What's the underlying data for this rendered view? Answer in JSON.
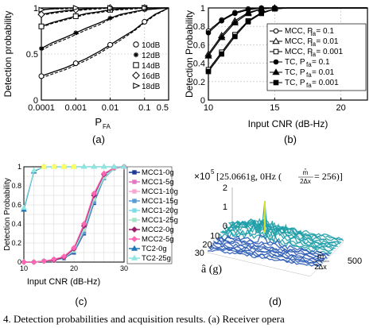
{
  "caption": "4.   Detection probabilities and acquisition results. (a) Receiver opera",
  "chart_data": [
    {
      "type": "line",
      "panel_label": "(a)",
      "xlabel_main": "P",
      "xlabel_sub": "FA",
      "ylabel": "Detection probability",
      "xscale": "log",
      "x_ticks": [
        "0.0001",
        "0.001",
        "0.01",
        "0.1",
        "0.5"
      ],
      "y_ticks": [
        "0",
        "0.5",
        "1"
      ],
      "xlim": [
        0.0001,
        0.5
      ],
      "ylim": [
        0,
        1
      ],
      "grid": true,
      "legend_position": "bottom-right",
      "x": [
        0.0001,
        0.0002,
        0.0005,
        0.001,
        0.002,
        0.005,
        0.01,
        0.02,
        0.05,
        0.1,
        0.2,
        0.5
      ],
      "series": [
        {
          "name": "10dB",
          "marker": "circle",
          "solid": [
            0.26,
            0.3,
            0.35,
            0.4,
            0.45,
            0.53,
            0.6,
            0.67,
            0.76,
            0.85,
            0.93,
            1.0
          ],
          "dashed": [
            0.24,
            0.28,
            0.33,
            0.38,
            0.43,
            0.51,
            0.58,
            0.65,
            0.75,
            0.84,
            0.92,
            1.0
          ]
        },
        {
          "name": "12dB",
          "marker": "star",
          "solid": [
            0.56,
            0.62,
            0.68,
            0.73,
            0.78,
            0.84,
            0.89,
            0.93,
            0.96,
            0.98,
            0.99,
            1.0
          ],
          "dashed": [
            0.54,
            0.6,
            0.66,
            0.71,
            0.76,
            0.82,
            0.88,
            0.92,
            0.95,
            0.98,
            0.99,
            1.0
          ]
        },
        {
          "name": "14dB",
          "marker": "square",
          "solid": [
            0.8,
            0.84,
            0.88,
            0.91,
            0.94,
            0.96,
            0.98,
            0.99,
            1.0,
            1.0,
            1.0,
            1.0
          ],
          "dashed": [
            0.79,
            0.83,
            0.87,
            0.9,
            0.93,
            0.95,
            0.97,
            0.98,
            0.99,
            1.0,
            1.0,
            1.0
          ]
        },
        {
          "name": "16dB",
          "marker": "diamond",
          "solid": [
            0.93,
            0.95,
            0.97,
            0.98,
            0.99,
            1.0,
            1.0,
            1.0,
            1.0,
            1.0,
            1.0,
            1.0
          ],
          "dashed": [
            0.92,
            0.94,
            0.96,
            0.97,
            0.98,
            0.99,
            1.0,
            1.0,
            1.0,
            1.0,
            1.0,
            1.0
          ]
        },
        {
          "name": "18dB",
          "marker": "triangle-right",
          "solid": [
            0.98,
            0.99,
            1.0,
            1.0,
            1.0,
            1.0,
            1.0,
            1.0,
            1.0,
            1.0,
            1.0,
            1.0
          ],
          "dashed": [
            0.98,
            0.99,
            0.99,
            1.0,
            1.0,
            1.0,
            1.0,
            1.0,
            1.0,
            1.0,
            1.0,
            1.0
          ]
        }
      ]
    },
    {
      "type": "line",
      "panel_label": "(b)",
      "xlabel": "Input CNR (dB-Hz)",
      "ylabel": "Detection Probability",
      "x_ticks": [
        "10",
        "15",
        "20"
      ],
      "y_ticks": [
        "0",
        "0.2",
        "0.4",
        "0.6",
        "0.8",
        "1"
      ],
      "xlim": [
        10,
        22
      ],
      "ylim": [
        0,
        1
      ],
      "grid": true,
      "legend_position": "right",
      "x": [
        10,
        11,
        12,
        13,
        14,
        15,
        16,
        17,
        18,
        19,
        20,
        21,
        22
      ],
      "series": [
        {
          "name": "MCC, P",
          "name_sub": "fa",
          "name_tail": " = 0.1",
          "marker": "circle-open",
          "values": [
            0.75,
            0.87,
            0.95,
            0.99,
            1.0,
            1.0,
            1.0,
            1.0,
            1.0,
            1.0,
            1.0,
            1.0,
            1.0
          ]
        },
        {
          "name": "MCC, P",
          "name_sub": "fa",
          "name_tail": " = 0.01",
          "marker": "triangle-open",
          "values": [
            0.5,
            0.7,
            0.86,
            0.95,
            0.99,
            1.0,
            1.0,
            1.0,
            1.0,
            1.0,
            1.0,
            1.0,
            1.0
          ]
        },
        {
          "name": "MCC, P",
          "name_sub": "fa",
          "name_tail": " = 0.001",
          "marker": "square-open",
          "values": [
            0.33,
            0.52,
            0.71,
            0.86,
            0.95,
            0.99,
            1.0,
            1.0,
            1.0,
            1.0,
            1.0,
            1.0,
            1.0
          ]
        },
        {
          "name": "TC, P",
          "name_sub": "fa",
          "name_tail": " = 0.1",
          "marker": "circle-filled",
          "values": [
            0.73,
            0.86,
            0.94,
            0.98,
            1.0,
            1.0,
            1.0,
            1.0,
            1.0,
            1.0,
            1.0,
            1.0,
            1.0
          ]
        },
        {
          "name": "TC, P",
          "name_sub": "fa",
          "name_tail": " = 0.01",
          "marker": "triangle-filled",
          "values": [
            0.48,
            0.68,
            0.84,
            0.94,
            0.99,
            1.0,
            1.0,
            1.0,
            1.0,
            1.0,
            1.0,
            1.0,
            1.0
          ]
        },
        {
          "name": "TC, P",
          "name_sub": "fa",
          "name_tail": " = 0.001",
          "marker": "square-filled",
          "values": [
            0.31,
            0.5,
            0.69,
            0.85,
            0.94,
            0.99,
            1.0,
            1.0,
            1.0,
            1.0,
            1.0,
            1.0,
            1.0
          ]
        }
      ]
    },
    {
      "type": "line",
      "panel_label": "(c)",
      "xlabel": "Input CNR (dB-Hz)",
      "ylabel": "Detection Probability",
      "x_ticks": [
        "10",
        "20",
        "30"
      ],
      "y_ticks": [
        "0",
        "0.2",
        "0.4",
        "0.6",
        "0.8",
        "1"
      ],
      "xlim": [
        10,
        30
      ],
      "ylim": [
        0,
        1
      ],
      "grid": true,
      "legend_position": "right",
      "x": [
        10,
        12,
        14,
        16,
        18,
        20,
        22,
        24,
        26,
        28,
        30
      ],
      "series": [
        {
          "name": "MCC1-0g",
          "color": "#1f3a93",
          "marker": "square",
          "values": [
            0.0,
            0.0,
            0.01,
            0.02,
            0.04,
            0.1,
            0.3,
            0.62,
            0.88,
            0.98,
            1.0
          ]
        },
        {
          "name": "MCC1-5g",
          "color": "#e377c2",
          "marker": "square",
          "values": [
            0.0,
            0.0,
            0.01,
            0.02,
            0.05,
            0.12,
            0.32,
            0.64,
            0.89,
            0.98,
            1.0
          ]
        },
        {
          "name": "MCC1-10g",
          "color": "#f7a8d0",
          "marker": "square",
          "values": [
            0.0,
            0.0,
            0.01,
            0.02,
            0.05,
            0.12,
            0.33,
            0.65,
            0.9,
            0.98,
            1.0
          ]
        },
        {
          "name": "MCC1-15g",
          "color": "#5b9bd5",
          "marker": "square",
          "values": [
            0.0,
            0.0,
            0.01,
            0.02,
            0.04,
            0.11,
            0.31,
            0.63,
            0.88,
            0.98,
            1.0
          ]
        },
        {
          "name": "MCC1-20g",
          "color": "#7fdbe8",
          "marker": "square",
          "values": [
            0.0,
            0.0,
            0.01,
            0.03,
            0.05,
            0.13,
            0.35,
            0.67,
            0.9,
            0.99,
            1.0
          ]
        },
        {
          "name": "MCC1-25g",
          "color": "#a6e3c8",
          "marker": "square",
          "values": [
            0.0,
            0.0,
            0.01,
            0.02,
            0.05,
            0.12,
            0.34,
            0.66,
            0.89,
            0.98,
            1.0
          ]
        },
        {
          "name": "MCC2-0g",
          "color": "#9c1f6e",
          "marker": "diamond",
          "values": [
            0.0,
            0.0,
            0.01,
            0.02,
            0.05,
            0.14,
            0.38,
            0.7,
            0.92,
            0.99,
            1.0
          ]
        },
        {
          "name": "MCC2-5g",
          "color": "#ff66b3",
          "marker": "diamond",
          "values": [
            0.0,
            0.0,
            0.01,
            0.03,
            0.06,
            0.15,
            0.4,
            0.72,
            0.93,
            0.99,
            1.0
          ]
        },
        {
          "name": "TC2-0g",
          "color": "#1f77b4",
          "marker": "triangle",
          "values": [
            0.55,
            0.95,
            1.0,
            1.0,
            1.0,
            1.0,
            1.0,
            1.0,
            1.0,
            1.0,
            1.0
          ]
        },
        {
          "name": "TC2-25g",
          "color": "#8ee6e0",
          "marker": "triangle",
          "values": [
            0.57,
            0.96,
            1.0,
            1.0,
            1.0,
            1.0,
            1.0,
            1.0,
            1.0,
            1.0,
            1.0
          ]
        }
      ],
      "upper_cluster_color": "#ffff66"
    },
    {
      "type": "surface",
      "panel_label": "(d)",
      "title_prefix": "×10",
      "title_exp": "5",
      "title_main": "[25.0661g, 0Hz (",
      "title_frac_num": "m̂",
      "title_frac_den": "2Δx",
      "title_tail": " = 256)]",
      "z_ticks": [
        "0",
        "1",
        "2"
      ],
      "y_ticks": [
        "10",
        "20",
        "30"
      ],
      "x_ticks": [
        "500"
      ],
      "ylabel": "â (g)",
      "xlabel_num": "m̂",
      "xlabel_den": "2Δx",
      "peak_value": 2.0,
      "noise_floor": 0.3,
      "colormap": [
        "#2c1a7a",
        "#2b5bb5",
        "#1f9fa8",
        "#4fc97a",
        "#d7e02a"
      ]
    }
  ]
}
